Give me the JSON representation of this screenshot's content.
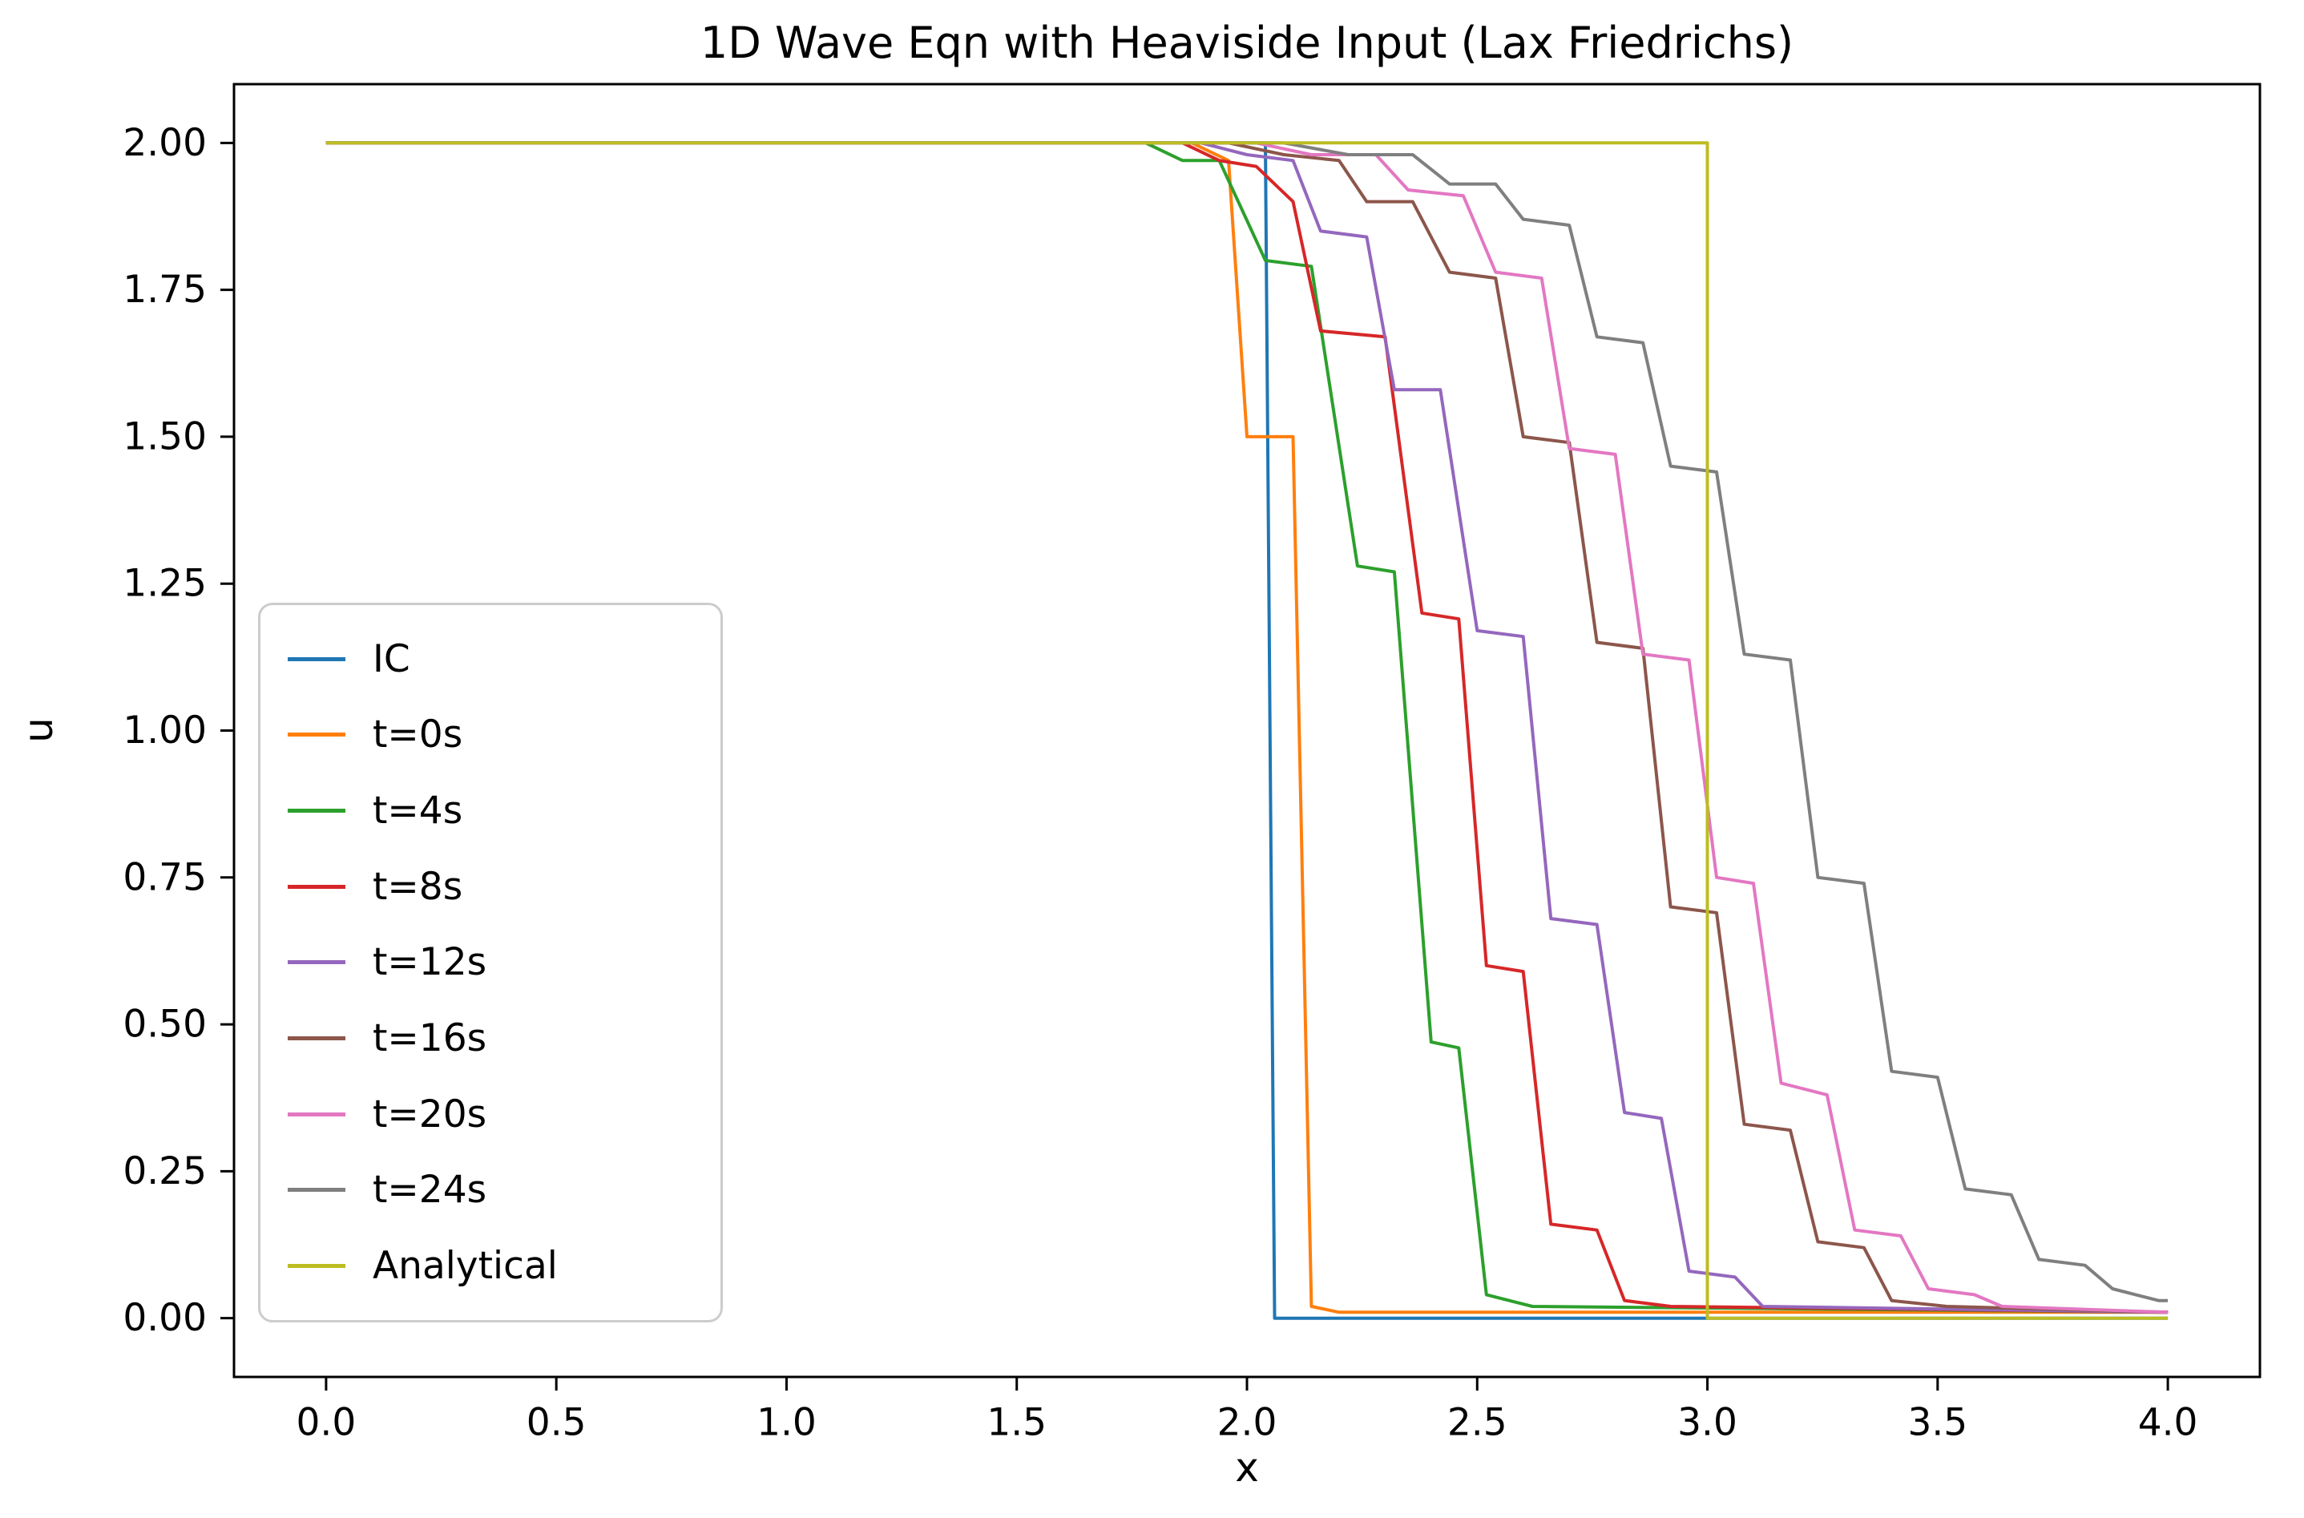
{
  "chart_data": {
    "type": "line",
    "title": "1D Wave Eqn with Heaviside Input (Lax Friedrichs)",
    "xlabel": "x",
    "ylabel": "u",
    "xlim": [
      -0.2,
      4.2
    ],
    "ylim": [
      -0.1,
      2.1
    ],
    "grid": false,
    "legend_position": "center-left",
    "x_ticks": {
      "values": [
        0.0,
        0.5,
        1.0,
        1.5,
        2.0,
        2.5,
        3.0,
        3.5,
        4.0
      ],
      "labels": [
        "0.0",
        "0.5",
        "1.0",
        "1.5",
        "2.0",
        "2.5",
        "3.0",
        "3.5",
        "4.0"
      ]
    },
    "y_ticks": {
      "values": [
        0.0,
        0.25,
        0.5,
        0.75,
        1.0,
        1.25,
        1.5,
        1.75,
        2.0
      ],
      "labels": [
        "0.00",
        "0.25",
        "0.50",
        "0.75",
        "1.00",
        "1.25",
        "1.50",
        "1.75",
        "2.00"
      ]
    },
    "series": [
      {
        "name": "IC",
        "color": "#1f77b4",
        "points": [
          [
            0,
            2
          ],
          [
            2.04,
            2
          ],
          [
            2.06,
            0
          ],
          [
            4,
            0
          ]
        ]
      },
      {
        "name": "t=0s",
        "color": "#ff7f0e",
        "points": [
          [
            0,
            2
          ],
          [
            1.88,
            2
          ],
          [
            1.96,
            1.97
          ],
          [
            2.0,
            1.5
          ],
          [
            2.1,
            1.5
          ],
          [
            2.14,
            0.02
          ],
          [
            2.2,
            0.01
          ],
          [
            4,
            0.01
          ]
        ]
      },
      {
        "name": "t=4s",
        "color": "#2ca02c",
        "points": [
          [
            0,
            2
          ],
          [
            1.78,
            2
          ],
          [
            1.86,
            1.97
          ],
          [
            1.94,
            1.97
          ],
          [
            2.04,
            1.8
          ],
          [
            2.14,
            1.79
          ],
          [
            2.24,
            1.28
          ],
          [
            2.32,
            1.27
          ],
          [
            2.4,
            0.47
          ],
          [
            2.46,
            0.46
          ],
          [
            2.52,
            0.04
          ],
          [
            2.62,
            0.02
          ],
          [
            4,
            0.01
          ]
        ]
      },
      {
        "name": "t=8s",
        "color": "#d62728",
        "points": [
          [
            0,
            2
          ],
          [
            1.86,
            2
          ],
          [
            1.94,
            1.97
          ],
          [
            2.02,
            1.96
          ],
          [
            2.1,
            1.9
          ],
          [
            2.16,
            1.68
          ],
          [
            2.3,
            1.67
          ],
          [
            2.38,
            1.2
          ],
          [
            2.46,
            1.19
          ],
          [
            2.52,
            0.6
          ],
          [
            2.6,
            0.59
          ],
          [
            2.66,
            0.16
          ],
          [
            2.76,
            0.15
          ],
          [
            2.82,
            0.03
          ],
          [
            2.92,
            0.02
          ],
          [
            4,
            0.01
          ]
        ]
      },
      {
        "name": "t=12s",
        "color": "#9467bd",
        "points": [
          [
            0,
            2
          ],
          [
            1.9,
            2
          ],
          [
            2.0,
            1.98
          ],
          [
            2.1,
            1.97
          ],
          [
            2.16,
            1.85
          ],
          [
            2.26,
            1.84
          ],
          [
            2.32,
            1.58
          ],
          [
            2.42,
            1.58
          ],
          [
            2.5,
            1.17
          ],
          [
            2.6,
            1.16
          ],
          [
            2.66,
            0.68
          ],
          [
            2.76,
            0.67
          ],
          [
            2.82,
            0.35
          ],
          [
            2.9,
            0.34
          ],
          [
            2.96,
            0.08
          ],
          [
            3.06,
            0.07
          ],
          [
            3.12,
            0.02
          ],
          [
            4,
            0.01
          ]
        ]
      },
      {
        "name": "t=16s",
        "color": "#8c564b",
        "points": [
          [
            0,
            2
          ],
          [
            1.96,
            2
          ],
          [
            2.08,
            1.98
          ],
          [
            2.2,
            1.97
          ],
          [
            2.26,
            1.9
          ],
          [
            2.36,
            1.9
          ],
          [
            2.44,
            1.78
          ],
          [
            2.54,
            1.77
          ],
          [
            2.6,
            1.5
          ],
          [
            2.7,
            1.49
          ],
          [
            2.76,
            1.15
          ],
          [
            2.86,
            1.14
          ],
          [
            2.92,
            0.7
          ],
          [
            3.02,
            0.69
          ],
          [
            3.08,
            0.33
          ],
          [
            3.18,
            0.32
          ],
          [
            3.24,
            0.13
          ],
          [
            3.34,
            0.12
          ],
          [
            3.4,
            0.03
          ],
          [
            3.52,
            0.02
          ],
          [
            4,
            0.01
          ]
        ]
      },
      {
        "name": "t=20s",
        "color": "#e377c2",
        "points": [
          [
            0,
            2
          ],
          [
            2.02,
            2
          ],
          [
            2.14,
            1.98
          ],
          [
            2.28,
            1.98
          ],
          [
            2.35,
            1.92
          ],
          [
            2.47,
            1.91
          ],
          [
            2.54,
            1.78
          ],
          [
            2.64,
            1.77
          ],
          [
            2.7,
            1.48
          ],
          [
            2.8,
            1.47
          ],
          [
            2.86,
            1.13
          ],
          [
            2.96,
            1.12
          ],
          [
            3.02,
            0.75
          ],
          [
            3.1,
            0.74
          ],
          [
            3.16,
            0.4
          ],
          [
            3.26,
            0.38
          ],
          [
            3.32,
            0.15
          ],
          [
            3.42,
            0.14
          ],
          [
            3.48,
            0.05
          ],
          [
            3.58,
            0.04
          ],
          [
            3.64,
            0.02
          ],
          [
            4,
            0.01
          ]
        ]
      },
      {
        "name": "t=24s",
        "color": "#7f7f7f",
        "points": [
          [
            0,
            2
          ],
          [
            2.08,
            2
          ],
          [
            2.22,
            1.98
          ],
          [
            2.36,
            1.98
          ],
          [
            2.44,
            1.93
          ],
          [
            2.54,
            1.93
          ],
          [
            2.6,
            1.87
          ],
          [
            2.7,
            1.86
          ],
          [
            2.76,
            1.67
          ],
          [
            2.86,
            1.66
          ],
          [
            2.92,
            1.45
          ],
          [
            3.02,
            1.44
          ],
          [
            3.08,
            1.13
          ],
          [
            3.18,
            1.12
          ],
          [
            3.24,
            0.75
          ],
          [
            3.34,
            0.74
          ],
          [
            3.4,
            0.42
          ],
          [
            3.5,
            0.41
          ],
          [
            3.56,
            0.22
          ],
          [
            3.66,
            0.21
          ],
          [
            3.72,
            0.1
          ],
          [
            3.82,
            0.09
          ],
          [
            3.88,
            0.05
          ],
          [
            3.98,
            0.03
          ],
          [
            4,
            0.03
          ]
        ]
      },
      {
        "name": "Analytical",
        "color": "#bcbd22",
        "points": [
          [
            0,
            2
          ],
          [
            3.0,
            2
          ],
          [
            3.0,
            0
          ],
          [
            4,
            0
          ]
        ]
      }
    ]
  },
  "colors": {
    "background": "#ffffff",
    "axes": "#000000",
    "legend_border": "#cccccc"
  }
}
